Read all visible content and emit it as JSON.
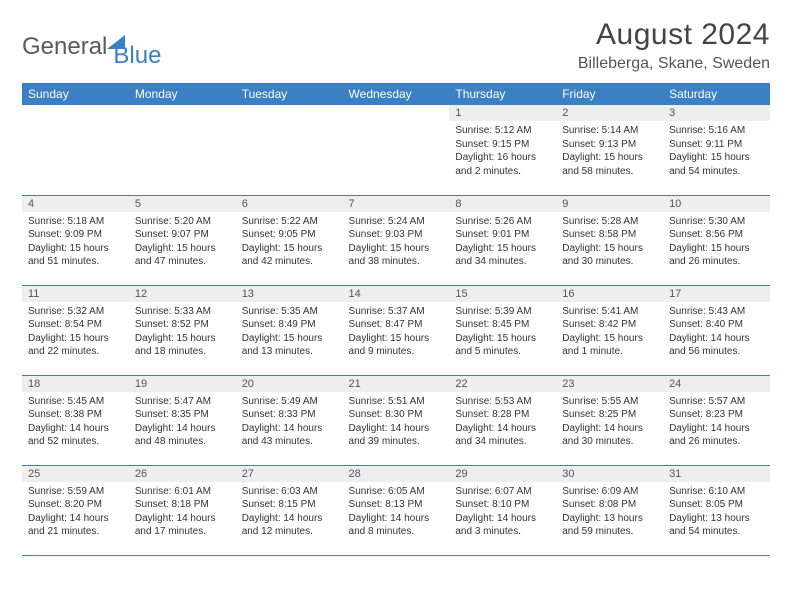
{
  "logo": {
    "part1": "General",
    "part2": "Blue"
  },
  "title": "August 2024",
  "location": "Billeberga, Skane, Sweden",
  "colors": {
    "header_bg": "#3b7fc4",
    "header_text": "#ffffff",
    "daynum_bg": "#eeeeee",
    "row_border": "#3b7fc4",
    "body_text": "#333333",
    "background": "#ffffff"
  },
  "weekdays": [
    "Sunday",
    "Monday",
    "Tuesday",
    "Wednesday",
    "Thursday",
    "Friday",
    "Saturday"
  ],
  "weeks": [
    [
      {
        "empty": true
      },
      {
        "empty": true
      },
      {
        "empty": true
      },
      {
        "empty": true
      },
      {
        "num": "1",
        "sunrise": "Sunrise: 5:12 AM",
        "sunset": "Sunset: 9:15 PM",
        "daylight": "Daylight: 16 hours and 2 minutes."
      },
      {
        "num": "2",
        "sunrise": "Sunrise: 5:14 AM",
        "sunset": "Sunset: 9:13 PM",
        "daylight": "Daylight: 15 hours and 58 minutes."
      },
      {
        "num": "3",
        "sunrise": "Sunrise: 5:16 AM",
        "sunset": "Sunset: 9:11 PM",
        "daylight": "Daylight: 15 hours and 54 minutes."
      }
    ],
    [
      {
        "num": "4",
        "sunrise": "Sunrise: 5:18 AM",
        "sunset": "Sunset: 9:09 PM",
        "daylight": "Daylight: 15 hours and 51 minutes."
      },
      {
        "num": "5",
        "sunrise": "Sunrise: 5:20 AM",
        "sunset": "Sunset: 9:07 PM",
        "daylight": "Daylight: 15 hours and 47 minutes."
      },
      {
        "num": "6",
        "sunrise": "Sunrise: 5:22 AM",
        "sunset": "Sunset: 9:05 PM",
        "daylight": "Daylight: 15 hours and 42 minutes."
      },
      {
        "num": "7",
        "sunrise": "Sunrise: 5:24 AM",
        "sunset": "Sunset: 9:03 PM",
        "daylight": "Daylight: 15 hours and 38 minutes."
      },
      {
        "num": "8",
        "sunrise": "Sunrise: 5:26 AM",
        "sunset": "Sunset: 9:01 PM",
        "daylight": "Daylight: 15 hours and 34 minutes."
      },
      {
        "num": "9",
        "sunrise": "Sunrise: 5:28 AM",
        "sunset": "Sunset: 8:58 PM",
        "daylight": "Daylight: 15 hours and 30 minutes."
      },
      {
        "num": "10",
        "sunrise": "Sunrise: 5:30 AM",
        "sunset": "Sunset: 8:56 PM",
        "daylight": "Daylight: 15 hours and 26 minutes."
      }
    ],
    [
      {
        "num": "11",
        "sunrise": "Sunrise: 5:32 AM",
        "sunset": "Sunset: 8:54 PM",
        "daylight": "Daylight: 15 hours and 22 minutes."
      },
      {
        "num": "12",
        "sunrise": "Sunrise: 5:33 AM",
        "sunset": "Sunset: 8:52 PM",
        "daylight": "Daylight: 15 hours and 18 minutes."
      },
      {
        "num": "13",
        "sunrise": "Sunrise: 5:35 AM",
        "sunset": "Sunset: 8:49 PM",
        "daylight": "Daylight: 15 hours and 13 minutes."
      },
      {
        "num": "14",
        "sunrise": "Sunrise: 5:37 AM",
        "sunset": "Sunset: 8:47 PM",
        "daylight": "Daylight: 15 hours and 9 minutes."
      },
      {
        "num": "15",
        "sunrise": "Sunrise: 5:39 AM",
        "sunset": "Sunset: 8:45 PM",
        "daylight": "Daylight: 15 hours and 5 minutes."
      },
      {
        "num": "16",
        "sunrise": "Sunrise: 5:41 AM",
        "sunset": "Sunset: 8:42 PM",
        "daylight": "Daylight: 15 hours and 1 minute."
      },
      {
        "num": "17",
        "sunrise": "Sunrise: 5:43 AM",
        "sunset": "Sunset: 8:40 PM",
        "daylight": "Daylight: 14 hours and 56 minutes."
      }
    ],
    [
      {
        "num": "18",
        "sunrise": "Sunrise: 5:45 AM",
        "sunset": "Sunset: 8:38 PM",
        "daylight": "Daylight: 14 hours and 52 minutes."
      },
      {
        "num": "19",
        "sunrise": "Sunrise: 5:47 AM",
        "sunset": "Sunset: 8:35 PM",
        "daylight": "Daylight: 14 hours and 48 minutes."
      },
      {
        "num": "20",
        "sunrise": "Sunrise: 5:49 AM",
        "sunset": "Sunset: 8:33 PM",
        "daylight": "Daylight: 14 hours and 43 minutes."
      },
      {
        "num": "21",
        "sunrise": "Sunrise: 5:51 AM",
        "sunset": "Sunset: 8:30 PM",
        "daylight": "Daylight: 14 hours and 39 minutes."
      },
      {
        "num": "22",
        "sunrise": "Sunrise: 5:53 AM",
        "sunset": "Sunset: 8:28 PM",
        "daylight": "Daylight: 14 hours and 34 minutes."
      },
      {
        "num": "23",
        "sunrise": "Sunrise: 5:55 AM",
        "sunset": "Sunset: 8:25 PM",
        "daylight": "Daylight: 14 hours and 30 minutes."
      },
      {
        "num": "24",
        "sunrise": "Sunrise: 5:57 AM",
        "sunset": "Sunset: 8:23 PM",
        "daylight": "Daylight: 14 hours and 26 minutes."
      }
    ],
    [
      {
        "num": "25",
        "sunrise": "Sunrise: 5:59 AM",
        "sunset": "Sunset: 8:20 PM",
        "daylight": "Daylight: 14 hours and 21 minutes."
      },
      {
        "num": "26",
        "sunrise": "Sunrise: 6:01 AM",
        "sunset": "Sunset: 8:18 PM",
        "daylight": "Daylight: 14 hours and 17 minutes."
      },
      {
        "num": "27",
        "sunrise": "Sunrise: 6:03 AM",
        "sunset": "Sunset: 8:15 PM",
        "daylight": "Daylight: 14 hours and 12 minutes."
      },
      {
        "num": "28",
        "sunrise": "Sunrise: 6:05 AM",
        "sunset": "Sunset: 8:13 PM",
        "daylight": "Daylight: 14 hours and 8 minutes."
      },
      {
        "num": "29",
        "sunrise": "Sunrise: 6:07 AM",
        "sunset": "Sunset: 8:10 PM",
        "daylight": "Daylight: 14 hours and 3 minutes."
      },
      {
        "num": "30",
        "sunrise": "Sunrise: 6:09 AM",
        "sunset": "Sunset: 8:08 PM",
        "daylight": "Daylight: 13 hours and 59 minutes."
      },
      {
        "num": "31",
        "sunrise": "Sunrise: 6:10 AM",
        "sunset": "Sunset: 8:05 PM",
        "daylight": "Daylight: 13 hours and 54 minutes."
      }
    ]
  ]
}
